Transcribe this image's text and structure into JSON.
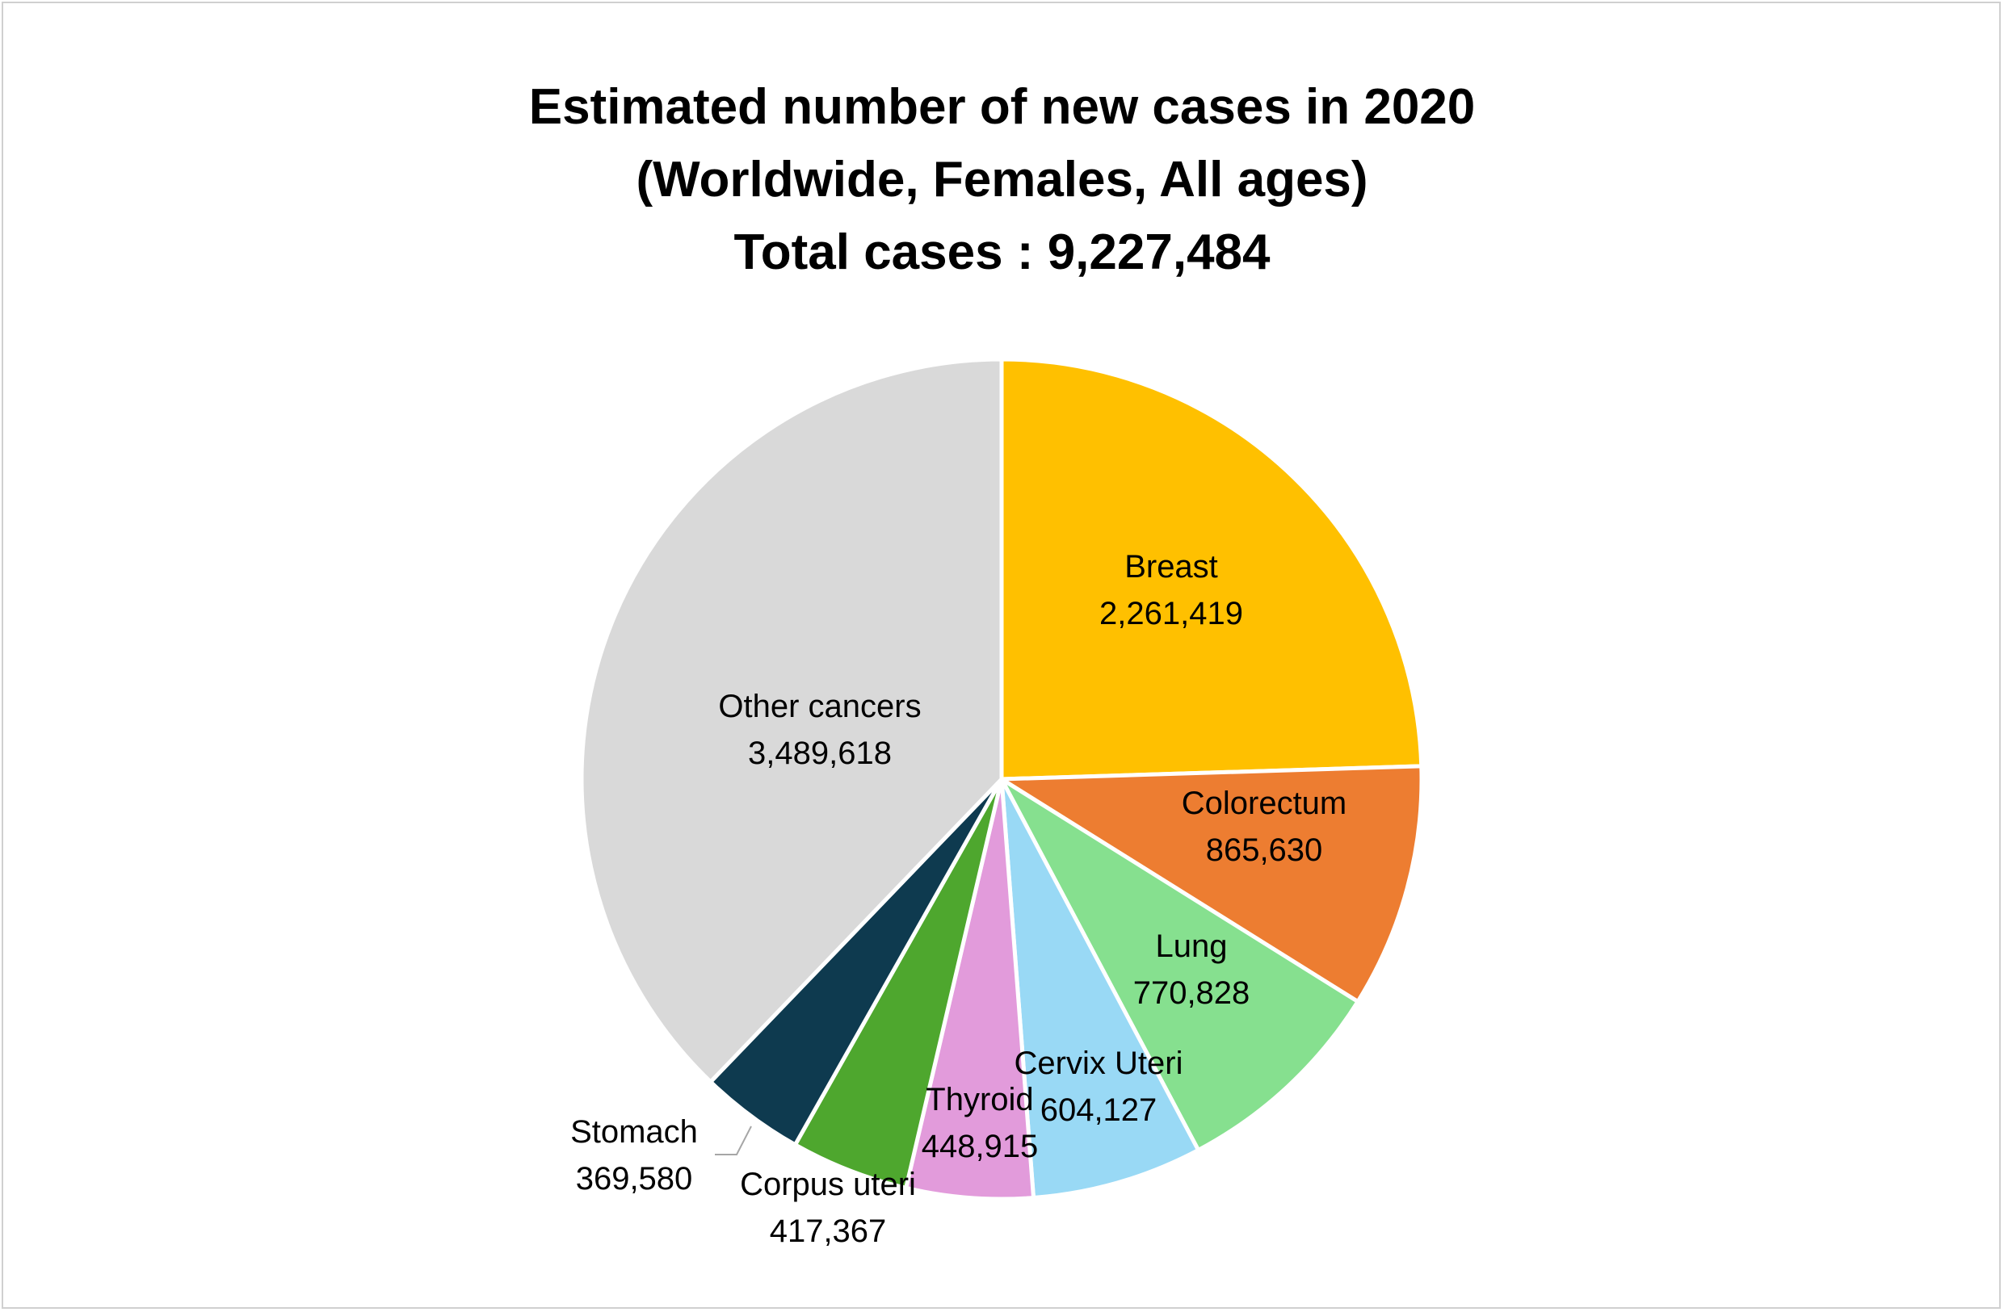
{
  "chart_data": {
    "type": "pie",
    "title_lines": [
      "Estimated number of new cases in 2020",
      "(Worldwide, Females, All ages)",
      "Total cases : 9,227,484"
    ],
    "slices": [
      {
        "name": "Breast",
        "value": 2261419,
        "value_label": "2,261,419",
        "color": "#FFC000"
      },
      {
        "name": "Colorectum",
        "value": 865630,
        "value_label": "865,630",
        "color": "#ED7D31"
      },
      {
        "name": "Lung",
        "value": 770828,
        "value_label": "770,828",
        "color": "#86E08F"
      },
      {
        "name": "Cervix Uteri",
        "value": 604127,
        "value_label": "604,127",
        "color": "#99D9F5"
      },
      {
        "name": "Thyroid",
        "value": 448915,
        "value_label": "448,915",
        "color": "#E29BDB"
      },
      {
        "name": "Corpus uteri",
        "value": 417367,
        "value_label": "417,367",
        "color": "#4EA72E"
      },
      {
        "name": "Stomach",
        "value": 369580,
        "value_label": "369,580",
        "color": "#0E3A4F"
      },
      {
        "name": "Other cancers",
        "value": 3489618,
        "value_label": "3,489,618",
        "color": "#D9D9D9"
      }
    ],
    "start_angle_deg": 0,
    "direction": "clockwise",
    "legend": "none",
    "slice_border_color": "#FFFFFF"
  }
}
